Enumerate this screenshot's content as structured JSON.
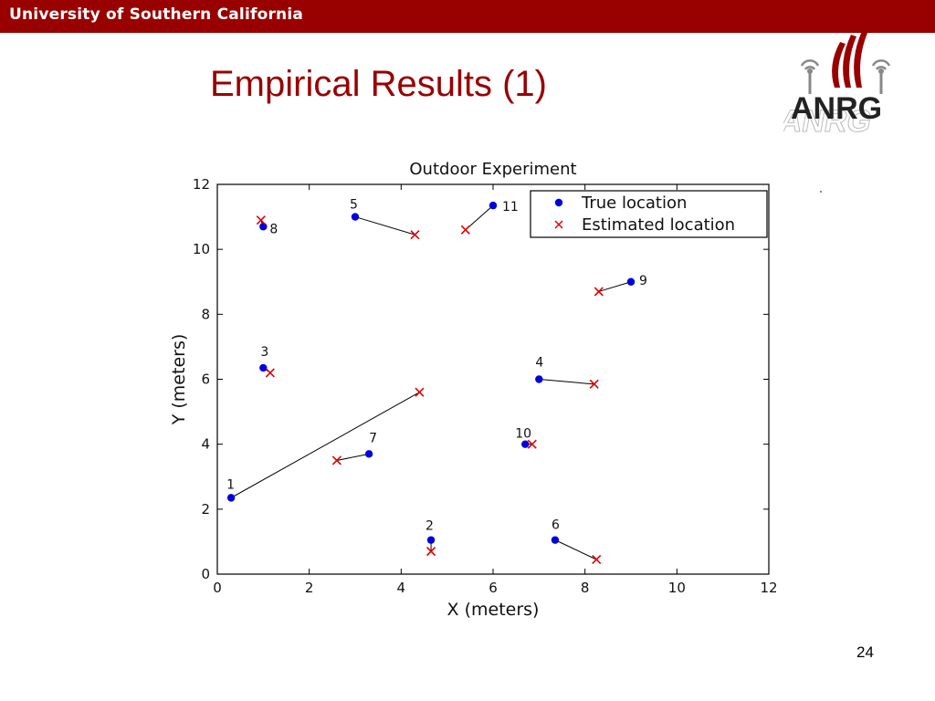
{
  "header": {
    "university": "University of Southern California"
  },
  "slide": {
    "title": "Empirical Results (1)",
    "page_number": "24"
  },
  "logo": {
    "text": "ANRG",
    "colors": {
      "maroon": "#990000",
      "gray": "#888888"
    }
  },
  "chart_data": {
    "type": "scatter",
    "title": "Outdoor Experiment",
    "xlabel": "X (meters)",
    "ylabel": "Y (meters)",
    "xlim": [
      0,
      12
    ],
    "ylim": [
      0,
      12
    ],
    "xticks": [
      0,
      2,
      4,
      6,
      8,
      10,
      12
    ],
    "yticks": [
      0,
      2,
      4,
      6,
      8,
      10,
      12
    ],
    "grid": false,
    "legend": {
      "position": "top-right",
      "entries": [
        "True location",
        "Estimated location"
      ]
    },
    "series": [
      {
        "name": "True location",
        "marker": "dot",
        "color": "#0000dd",
        "points": [
          {
            "id": "1",
            "x": 0.3,
            "y": 2.35
          },
          {
            "id": "2",
            "x": 4.65,
            "y": 1.05
          },
          {
            "id": "3",
            "x": 1.0,
            "y": 6.35
          },
          {
            "id": "4",
            "x": 7.0,
            "y": 6.0
          },
          {
            "id": "5",
            "x": 3.0,
            "y": 11.0
          },
          {
            "id": "6",
            "x": 7.35,
            "y": 1.05
          },
          {
            "id": "7",
            "x": 3.3,
            "y": 3.7
          },
          {
            "id": "8",
            "x": 1.0,
            "y": 10.7
          },
          {
            "id": "9",
            "x": 9.0,
            "y": 9.0
          },
          {
            "id": "10",
            "x": 6.7,
            "y": 4.0
          },
          {
            "id": "11",
            "x": 6.0,
            "y": 11.35
          }
        ]
      },
      {
        "name": "Estimated location",
        "marker": "x",
        "color": "#dd0000",
        "points": [
          {
            "id": "1",
            "x": 4.4,
            "y": 5.6
          },
          {
            "id": "2",
            "x": 4.65,
            "y": 0.7
          },
          {
            "id": "3",
            "x": 1.15,
            "y": 6.2
          },
          {
            "id": "4",
            "x": 8.2,
            "y": 5.85
          },
          {
            "id": "5",
            "x": 4.3,
            "y": 10.45
          },
          {
            "id": "6",
            "x": 8.25,
            "y": 0.45
          },
          {
            "id": "7",
            "x": 2.6,
            "y": 3.5
          },
          {
            "id": "8",
            "x": 0.95,
            "y": 10.9
          },
          {
            "id": "9",
            "x": 8.3,
            "y": 8.7
          },
          {
            "id": "10",
            "x": 6.85,
            "y": 4.0
          },
          {
            "id": "11",
            "x": 5.4,
            "y": 10.6
          }
        ]
      }
    ]
  }
}
